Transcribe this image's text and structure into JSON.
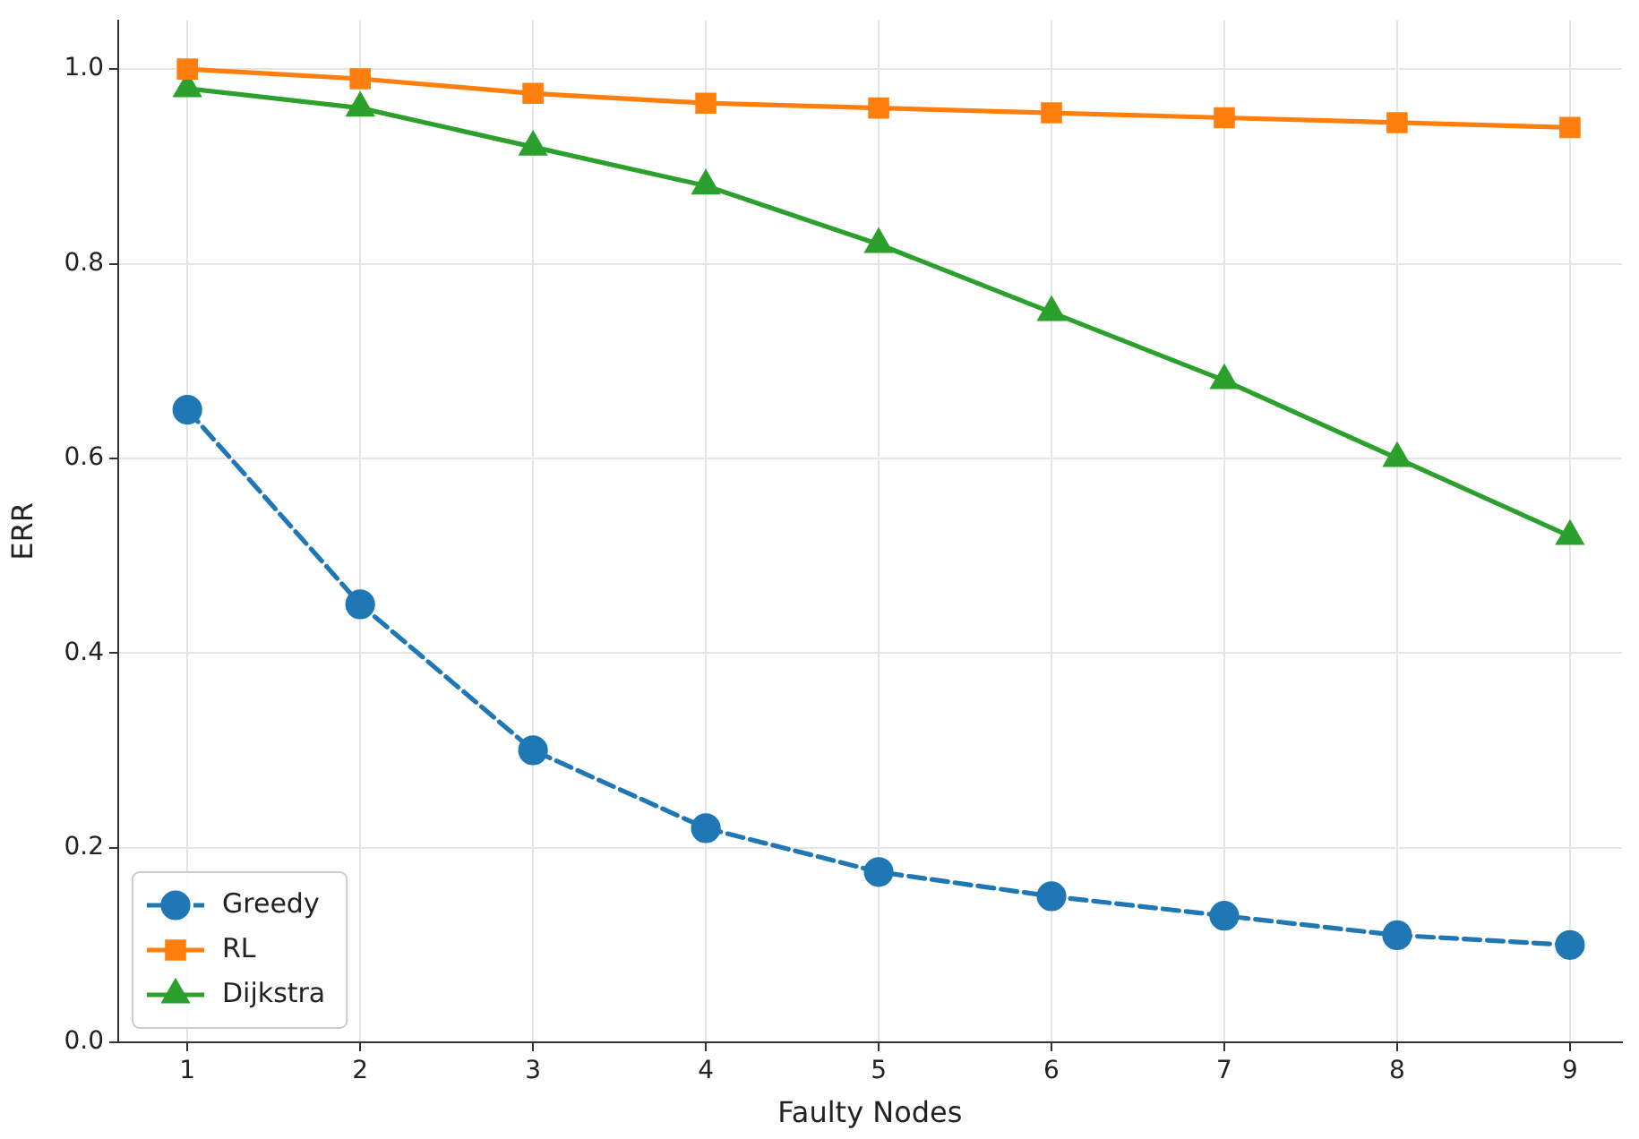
{
  "chart_data": {
    "type": "line",
    "xlabel": "Faulty Nodes",
    "ylabel": "ERR",
    "x": [
      1,
      2,
      3,
      4,
      5,
      6,
      7,
      8,
      9
    ],
    "series": [
      {
        "name": "Greedy",
        "color": "#1f77b4",
        "marker": "circle",
        "line_style": "dashed",
        "values": [
          0.65,
          0.45,
          0.3,
          0.22,
          0.175,
          0.15,
          0.13,
          0.11,
          0.1
        ]
      },
      {
        "name": "RL",
        "color": "#ff7f0e",
        "marker": "square",
        "line_style": "solid",
        "values": [
          1.0,
          0.99,
          0.975,
          0.965,
          0.96,
          0.955,
          0.95,
          0.945,
          0.94
        ]
      },
      {
        "name": "Dijkstra",
        "color": "#2ca02c",
        "marker": "triangle",
        "line_style": "solid",
        "values": [
          0.98,
          0.96,
          0.92,
          0.88,
          0.82,
          0.75,
          0.68,
          0.6,
          0.52
        ]
      }
    ],
    "xlim": [
      0.6,
      9.3
    ],
    "xticks": [
      1,
      2,
      3,
      4,
      5,
      6,
      7,
      8,
      9
    ],
    "ylim": [
      0,
      1.05
    ],
    "yticks": [
      {
        "value": 0,
        "label": "0.0"
      },
      0.2,
      0.4,
      0.6,
      0.8,
      {
        "value": 1,
        "label": "1.0"
      }
    ],
    "grid": true,
    "legend": "bottom left"
  }
}
